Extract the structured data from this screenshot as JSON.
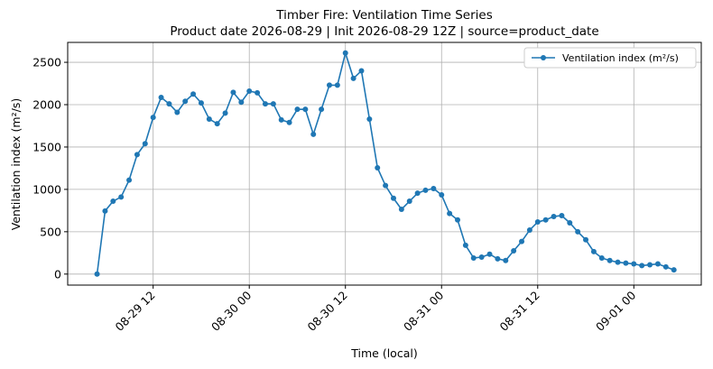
{
  "chart_data": {
    "type": "line",
    "title": "Timber Fire: Ventilation Time Series",
    "subtitle": "Product date 2026-08-29 | Init 2026-08-29 12Z | source=product_date",
    "x_label": "Time (local)",
    "y_label": "Ventilation index (m²/s)",
    "x": [
      "08-29 05",
      "08-29 06",
      "08-29 07",
      "08-29 08",
      "08-29 09",
      "08-29 10",
      "08-29 11",
      "08-29 12",
      "08-29 13",
      "08-29 14",
      "08-29 15",
      "08-29 16",
      "08-29 17",
      "08-29 18",
      "08-29 19",
      "08-29 20",
      "08-29 21",
      "08-29 22",
      "08-29 23",
      "08-30 00",
      "08-30 01",
      "08-30 02",
      "08-30 03",
      "08-30 04",
      "08-30 05",
      "08-30 06",
      "08-30 07",
      "08-30 08",
      "08-30 09",
      "08-30 10",
      "08-30 11",
      "08-30 12",
      "08-30 13",
      "08-30 14",
      "08-30 15",
      "08-30 16",
      "08-30 17",
      "08-30 18",
      "08-30 19",
      "08-30 20",
      "08-30 21",
      "08-30 22",
      "08-30 23",
      "08-31 00",
      "08-31 01",
      "08-31 02",
      "08-31 03",
      "08-31 04",
      "08-31 05",
      "08-31 06",
      "08-31 07",
      "08-31 08",
      "08-31 09",
      "08-31 10",
      "08-31 11",
      "08-31 12",
      "08-31 13",
      "08-31 14",
      "08-31 15",
      "08-31 16",
      "08-31 17",
      "08-31 18",
      "08-31 19",
      "08-31 20",
      "08-31 21",
      "08-31 22",
      "08-31 23",
      "09-01 00",
      "09-01 01",
      "09-01 02",
      "09-01 03",
      "09-01 04",
      "09-01 05"
    ],
    "series": [
      {
        "name": "Ventilation index (m²/s)",
        "color": "#1f77b4",
        "values": [
          0,
          745,
          860,
          910,
          1110,
          1410,
          1540,
          1850,
          2085,
          2010,
          1910,
          2040,
          2125,
          2020,
          1830,
          1775,
          1900,
          2145,
          2030,
          2160,
          2140,
          2010,
          2010,
          1820,
          1790,
          1945,
          1945,
          1650,
          1945,
          2230,
          2230,
          2610,
          2310,
          2400,
          1830,
          1255,
          1045,
          895,
          765,
          860,
          955,
          990,
          1010,
          935,
          715,
          640,
          340,
          190,
          200,
          235,
          180,
          160,
          275,
          385,
          520,
          615,
          640,
          680,
          690,
          605,
          500,
          405,
          265,
          190,
          160,
          140,
          130,
          120,
          100,
          110,
          120,
          85,
          50
        ]
      }
    ],
    "xlim": [
      "08-29 01:20",
      "09-01 08:25"
    ],
    "xticks": [
      "08-29 12",
      "08-30 00",
      "08-30 12",
      "08-31 00",
      "08-31 12",
      "09-01 00"
    ],
    "ylim": [
      -130,
      2735
    ],
    "yticks": [
      0,
      500,
      1000,
      1500,
      2000,
      2500
    ],
    "grid": true,
    "legend": "upper right"
  }
}
